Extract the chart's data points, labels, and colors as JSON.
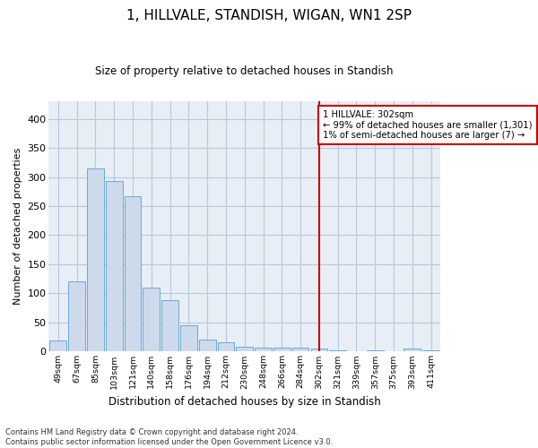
{
  "title": "1, HILLVALE, STANDISH, WIGAN, WN1 2SP",
  "subtitle": "Size of property relative to detached houses in Standish",
  "xlabel": "Distribution of detached houses by size in Standish",
  "ylabel": "Number of detached properties",
  "footnote": "Contains HM Land Registry data © Crown copyright and database right 2024.\nContains public sector information licensed under the Open Government Licence v3.0.",
  "bar_color": "#ccdaeb",
  "bar_edge_color": "#6aaad4",
  "categories": [
    "49sqm",
    "67sqm",
    "85sqm",
    "103sqm",
    "121sqm",
    "140sqm",
    "158sqm",
    "176sqm",
    "194sqm",
    "212sqm",
    "230sqm",
    "248sqm",
    "266sqm",
    "284sqm",
    "302sqm",
    "321sqm",
    "339sqm",
    "357sqm",
    "375sqm",
    "393sqm",
    "411sqm"
  ],
  "values": [
    19,
    120,
    315,
    293,
    267,
    110,
    88,
    45,
    20,
    16,
    8,
    7,
    7,
    7,
    5,
    2,
    0,
    2,
    0,
    5,
    2
  ],
  "red_line_index": 14,
  "annotation_line1": "1 HILLVALE: 302sqm",
  "annotation_line2": "← 99% of detached houses are smaller (1,301)",
  "annotation_line3": "1% of semi-detached houses are larger (7) →",
  "annotation_box_color": "#ffffff",
  "annotation_box_edge_color": "#cc0000",
  "ylim": [
    0,
    430
  ],
  "yticks": [
    0,
    50,
    100,
    150,
    200,
    250,
    300,
    350,
    400
  ],
  "grid_color": "#b8c8dc",
  "background_color": "#e8eef6"
}
